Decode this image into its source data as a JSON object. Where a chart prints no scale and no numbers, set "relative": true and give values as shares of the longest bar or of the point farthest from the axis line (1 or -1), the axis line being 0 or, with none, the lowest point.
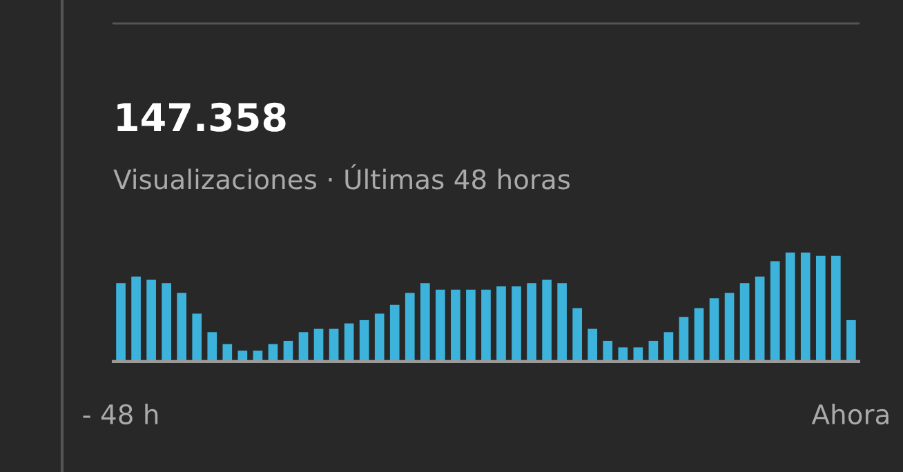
{
  "chart_data": {
    "type": "bar",
    "title": "147.358",
    "subtitle": "Visualizaciones · Últimas 48 horas",
    "relative": true,
    "color": "#3db3dc",
    "categories": [
      "- 48 h",
      null,
      null,
      null,
      null,
      null,
      null,
      null,
      null,
      null,
      null,
      null,
      null,
      null,
      null,
      null,
      null,
      null,
      null,
      null,
      null,
      null,
      null,
      null,
      null,
      null,
      null,
      null,
      null,
      null,
      null,
      null,
      null,
      null,
      null,
      null,
      null,
      null,
      null,
      null,
      null,
      null,
      null,
      null,
      null,
      null,
      null,
      null,
      "Ahora"
    ],
    "values": [
      0.72,
      0.78,
      0.75,
      0.72,
      0.63,
      0.44,
      0.27,
      0.16,
      0.1,
      0.1,
      0.16,
      0.19,
      0.27,
      0.3,
      0.3,
      0.35,
      0.38,
      0.44,
      0.52,
      0.63,
      0.72,
      0.66,
      0.66,
      0.66,
      0.66,
      0.69,
      0.69,
      0.72,
      0.75,
      0.72,
      0.49,
      0.3,
      0.19,
      0.13,
      0.13,
      0.19,
      0.27,
      0.41,
      0.49,
      0.58,
      0.63,
      0.72,
      0.78,
      0.92,
      1,
      1,
      0.97,
      0.97,
      0.38
    ],
    "grid": false,
    "legend": false
  }
}
